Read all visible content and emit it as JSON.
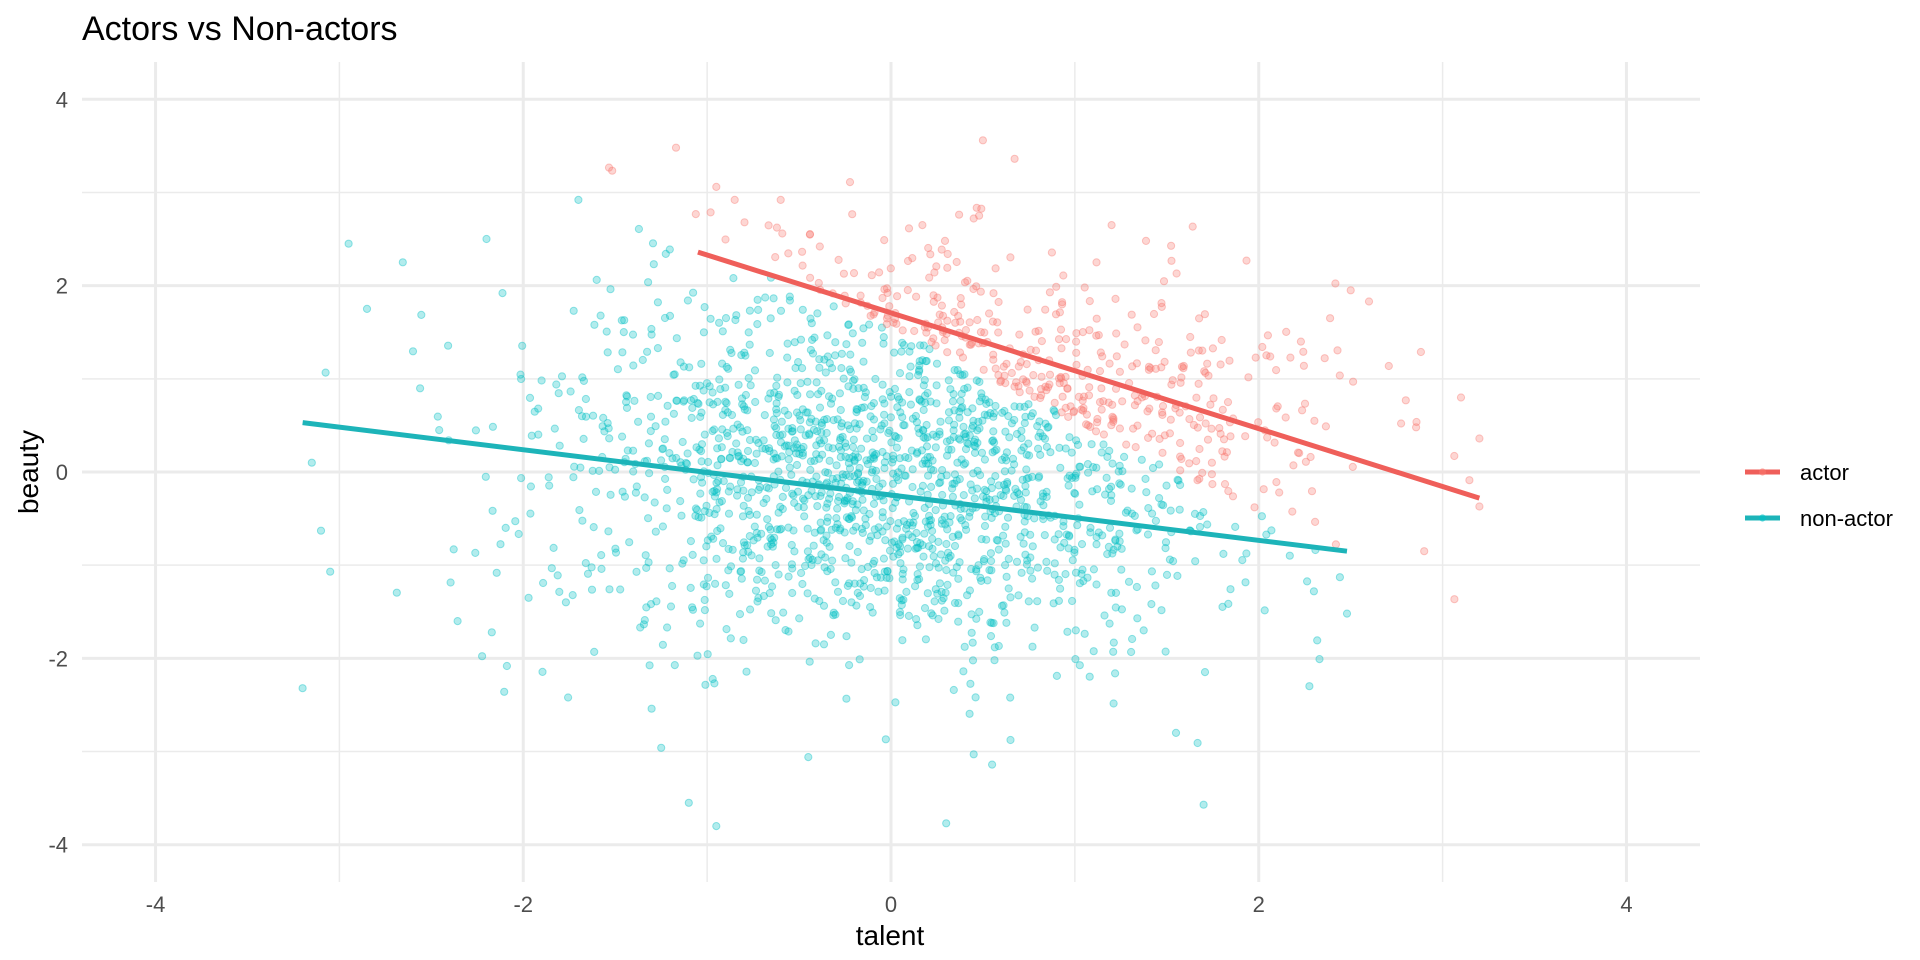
{
  "chart_data": {
    "type": "scatter",
    "title": "Actors vs Non-actors",
    "xlabel": "talent",
    "ylabel": "beauty",
    "xlim": [
      -4.4,
      4.4
    ],
    "ylim": [
      -4.4,
      4.4
    ],
    "xticks": [
      -4,
      -2,
      0,
      2,
      4
    ],
    "yticks": [
      -4,
      -2,
      0,
      2,
      4
    ],
    "grid": true,
    "legend_position": "right",
    "point_alpha": 0.3,
    "series": [
      {
        "name": "actor",
        "color": "#F8766D",
        "line_color": "#EF5F5A",
        "n_points": 420,
        "x_range": [
          -1.05,
          3.2
        ],
        "fit_line": {
          "x": [
            -1.05,
            3.2
          ],
          "y": [
            2.36,
            -0.28
          ]
        },
        "highlight_points": [
          {
            "x": 0.5,
            "y": 3.56
          },
          {
            "x": -0.95,
            "y": 3.06
          },
          {
            "x": -0.85,
            "y": 2.92
          },
          {
            "x": -0.6,
            "y": 2.92
          },
          {
            "x": 0.45,
            "y": 2.72
          },
          {
            "x": 1.2,
            "y": 2.65
          },
          {
            "x": 2.6,
            "y": 1.83
          },
          {
            "x": 2.9,
            "y": -0.85
          },
          {
            "x": 3.2,
            "y": 0.36
          },
          {
            "x": 3.1,
            "y": 0.8
          },
          {
            "x": 3.2,
            "y": -0.37
          },
          {
            "x": 2.8,
            "y": 0.77
          },
          {
            "x": 2.5,
            "y": 1.95
          }
        ]
      },
      {
        "name": "non-actor",
        "color": "#00BFC4",
        "line_color": "#1DB4B9",
        "n_points": 1580,
        "x_range": [
          -3.2,
          2.5
        ],
        "fit_line": {
          "x": [
            -3.2,
            2.48
          ],
          "y": [
            0.53,
            -0.85
          ]
        },
        "highlight_points": [
          {
            "x": -3.2,
            "y": -2.32
          },
          {
            "x": -3.15,
            "y": 0.1
          },
          {
            "x": -3.05,
            "y": -1.07
          },
          {
            "x": -3.1,
            "y": -0.63
          },
          {
            "x": -2.95,
            "y": 2.45
          },
          {
            "x": -2.85,
            "y": 1.75
          },
          {
            "x": -2.2,
            "y": 2.5
          },
          {
            "x": -1.7,
            "y": 2.92
          },
          {
            "x": -1.25,
            "y": -2.96
          },
          {
            "x": -1.1,
            "y": -3.55
          },
          {
            "x": -0.95,
            "y": -3.8
          },
          {
            "x": -0.45,
            "y": -3.06
          },
          {
            "x": 0.3,
            "y": -3.77
          },
          {
            "x": 0.55,
            "y": -3.14
          },
          {
            "x": 0.45,
            "y": -3.03
          },
          {
            "x": 1.7,
            "y": -3.57
          },
          {
            "x": 1.55,
            "y": -2.8
          },
          {
            "x": 2.48,
            "y": -1.52
          },
          {
            "x": 2.3,
            "y": -1.28
          }
        ]
      }
    ]
  }
}
